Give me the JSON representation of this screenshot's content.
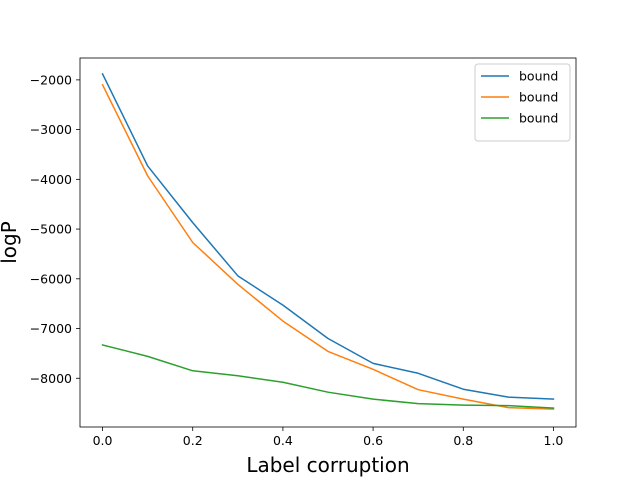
{
  "chart_data": {
    "type": "line",
    "title": "",
    "xlabel": "Label corruption",
    "ylabel": "logP",
    "xlim": [
      -0.05,
      1.05
    ],
    "ylim": [
      -8980,
      -1560
    ],
    "xticks": [
      0.0,
      0.2,
      0.4,
      0.6,
      0.8,
      1.0
    ],
    "xtick_labels": [
      "0.0",
      "0.2",
      "0.4",
      "0.6",
      "0.8",
      "1.0"
    ],
    "yticks": [
      -8000,
      -7000,
      -6000,
      -5000,
      -4000,
      -3000,
      -2000
    ],
    "ytick_labels": [
      "−8000",
      "−7000",
      "−6000",
      "−5000",
      "−4000",
      "−3000",
      "−2000"
    ],
    "grid": false,
    "legend_position": "top-right",
    "x": [
      0.0,
      0.1,
      0.2,
      0.3,
      0.4,
      0.5,
      0.6,
      0.7,
      0.8,
      0.9,
      1.0
    ],
    "series": [
      {
        "name": "bound",
        "color": "#1f77b4",
        "values": [
          -1880,
          -3730,
          -4870,
          -5940,
          -6530,
          -7200,
          -7700,
          -7900,
          -8220,
          -8380,
          -8420
        ]
      },
      {
        "name": "bound",
        "color": "#ff7f0e",
        "values": [
          -2100,
          -3930,
          -5270,
          -6110,
          -6850,
          -7460,
          -7820,
          -8230,
          -8420,
          -8590,
          -8620
        ]
      },
      {
        "name": "bound",
        "color": "#2ca02c",
        "values": [
          -7330,
          -7560,
          -7850,
          -7950,
          -8080,
          -8280,
          -8420,
          -8510,
          -8540,
          -8550,
          -8600
        ]
      }
    ]
  }
}
